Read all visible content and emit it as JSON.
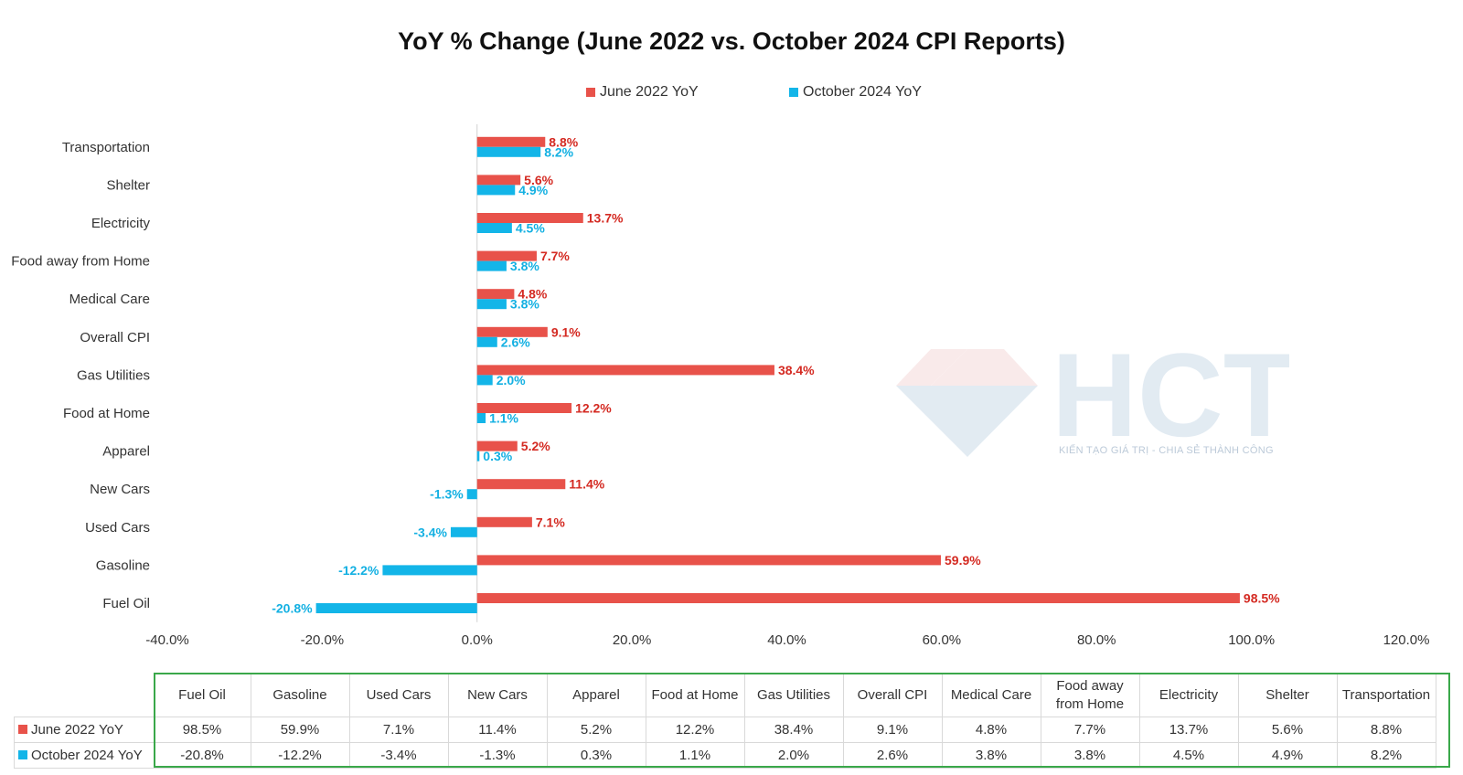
{
  "chart_data": {
    "type": "bar",
    "orientation": "horizontal",
    "title": "YoY % Change (June 2022 vs. October 2024 CPI Reports)",
    "categories": [
      "Transportation",
      "Shelter",
      "Electricity",
      "Food away from Home",
      "Medical Care",
      "Overall CPI",
      "Gas Utilities",
      "Food at Home",
      "Apparel",
      "New Cars",
      "Used Cars",
      "Gasoline",
      "Fuel Oil"
    ],
    "series": [
      {
        "name": "June 2022 YoY",
        "color": "#e8524a",
        "label_color": "#d42a22",
        "values": [
          8.8,
          5.6,
          13.7,
          7.7,
          4.8,
          9.1,
          38.4,
          12.2,
          5.2,
          11.4,
          7.1,
          59.9,
          98.5
        ],
        "labels": [
          "8.8%",
          "5.6%",
          "13.7%",
          "7.7%",
          "4.8%",
          "9.1%",
          "38.4%",
          "12.2%",
          "5.2%",
          "11.4%",
          "7.1%",
          "59.9%",
          "98.5%"
        ]
      },
      {
        "name": "October 2024 YoY",
        "color": "#13b5e8",
        "label_color": "#13b0e2",
        "values": [
          8.2,
          4.9,
          4.5,
          3.8,
          3.8,
          2.6,
          2.0,
          1.1,
          0.3,
          -1.3,
          -3.4,
          -12.2,
          -20.8
        ],
        "labels": [
          "8.2%",
          "4.9%",
          "4.5%",
          "3.8%",
          "3.8%",
          "2.6%",
          "2.0%",
          "1.1%",
          "0.3%",
          "-1.3%",
          "-3.4%",
          "-12.2%",
          "-20.8%"
        ]
      }
    ],
    "x_ticks": [
      "-40.0%",
      "-20.0%",
      "0.0%",
      "20.0%",
      "40.0%",
      "60.0%",
      "80.0%",
      "100.0%",
      "120.0%"
    ],
    "xlim": [
      -40,
      120
    ],
    "legend_position": "top-center",
    "grid": false
  },
  "watermark": {
    "brand": "HCT",
    "tagline": "KIẾN TẠO GIÁ TRỊ - CHIA SẺ THÀNH CÔNG"
  },
  "table": {
    "columns": [
      "Fuel Oil",
      "Gasoline",
      "Used Cars",
      "New Cars",
      "Apparel",
      "Food at Home",
      "Gas Utilities",
      "Overall CPI",
      "Medical Care",
      "Food away from Home",
      "Electricity",
      "Shelter",
      "Transportation"
    ],
    "rows": [
      {
        "label": "June 2022 YoY",
        "values": [
          "98.5%",
          "59.9%",
          "7.1%",
          "11.4%",
          "5.2%",
          "12.2%",
          "38.4%",
          "9.1%",
          "4.8%",
          "7.7%",
          "13.7%",
          "5.6%",
          "8.8%"
        ]
      },
      {
        "label": "October 2024 YoY",
        "values": [
          "-20.8%",
          "-12.2%",
          "-3.4%",
          "-1.3%",
          "0.3%",
          "1.1%",
          "2.0%",
          "2.6%",
          "3.8%",
          "3.8%",
          "4.5%",
          "4.9%",
          "8.2%"
        ]
      }
    ]
  }
}
